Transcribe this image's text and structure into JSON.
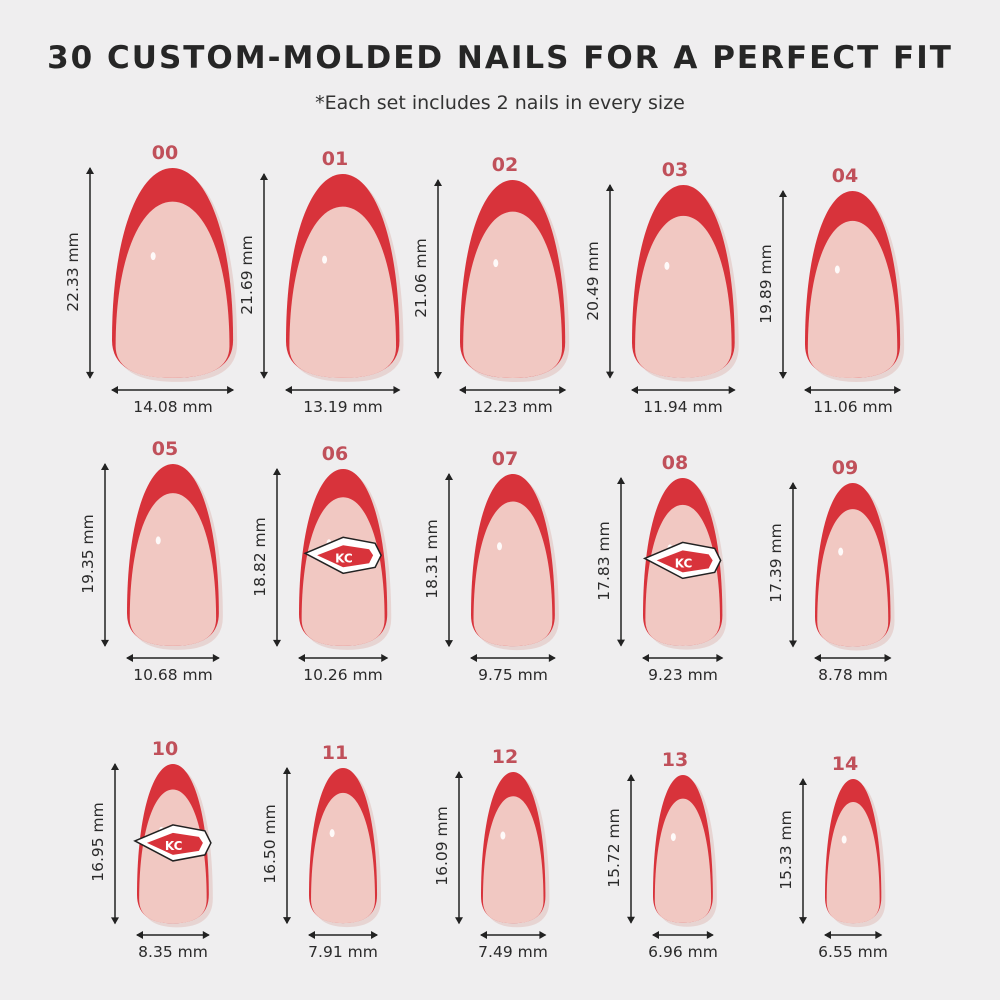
{
  "header": {
    "title": "30 CUSTOM-MOLDED NAILS FOR A PERFECT FIT",
    "subtitle": "*Each set includes 2 nails in every size"
  },
  "colors": {
    "tip_red": "#d8333b",
    "nail_pink": "#f1c8c2",
    "label_red": "#c0505a",
    "background": "#efeeef"
  },
  "nails": [
    {
      "label": "00",
      "height": "22.33 mm",
      "width": "14.08 mm",
      "height_mm": 22.33,
      "width_mm": 14.08,
      "logo": false
    },
    {
      "label": "01",
      "height": "21.69 mm",
      "width": "13.19 mm",
      "height_mm": 21.69,
      "width_mm": 13.19,
      "logo": false
    },
    {
      "label": "02",
      "height": "21.06 mm",
      "width": "12.23 mm",
      "height_mm": 21.06,
      "width_mm": 12.23,
      "logo": false
    },
    {
      "label": "03",
      "height": "20.49 mm",
      "width": "11.94 mm",
      "height_mm": 20.49,
      "width_mm": 11.94,
      "logo": false
    },
    {
      "label": "04",
      "height": "19.89 mm",
      "width": "11.06 mm",
      "height_mm": 19.89,
      "width_mm": 11.06,
      "logo": false
    },
    {
      "label": "05",
      "height": "19.35 mm",
      "width": "10.68 mm",
      "height_mm": 19.35,
      "width_mm": 10.68,
      "logo": false
    },
    {
      "label": "06",
      "height": "18.82 mm",
      "width": "10.26 mm",
      "height_mm": 18.82,
      "width_mm": 10.26,
      "logo": true
    },
    {
      "label": "07",
      "height": "18.31 mm",
      "width": "9.75 mm",
      "height_mm": 18.31,
      "width_mm": 9.75,
      "logo": false
    },
    {
      "label": "08",
      "height": "17.83 mm",
      "width": "9.23 mm",
      "height_mm": 17.83,
      "width_mm": 9.23,
      "logo": true
    },
    {
      "label": "09",
      "height": "17.39 mm",
      "width": "8.78 mm",
      "height_mm": 17.39,
      "width_mm": 8.78,
      "logo": false
    },
    {
      "label": "10",
      "height": "16.95 mm",
      "width": "8.35 mm",
      "height_mm": 16.95,
      "width_mm": 8.35,
      "logo": true
    },
    {
      "label": "11",
      "height": "16.50 mm",
      "width": "7.91 mm",
      "height_mm": 16.5,
      "width_mm": 7.91,
      "logo": false
    },
    {
      "label": "12",
      "height": "16.09 mm",
      "width": "7.49 mm",
      "height_mm": 16.09,
      "width_mm": 7.49,
      "logo": false
    },
    {
      "label": "13",
      "height": "15.72 mm",
      "width": "6.96 mm",
      "height_mm": 15.72,
      "width_mm": 6.96,
      "logo": false
    },
    {
      "label": "14",
      "height": "15.33 mm",
      "width": "6.55 mm",
      "height_mm": 15.33,
      "width_mm": 6.55,
      "logo": false
    }
  ]
}
